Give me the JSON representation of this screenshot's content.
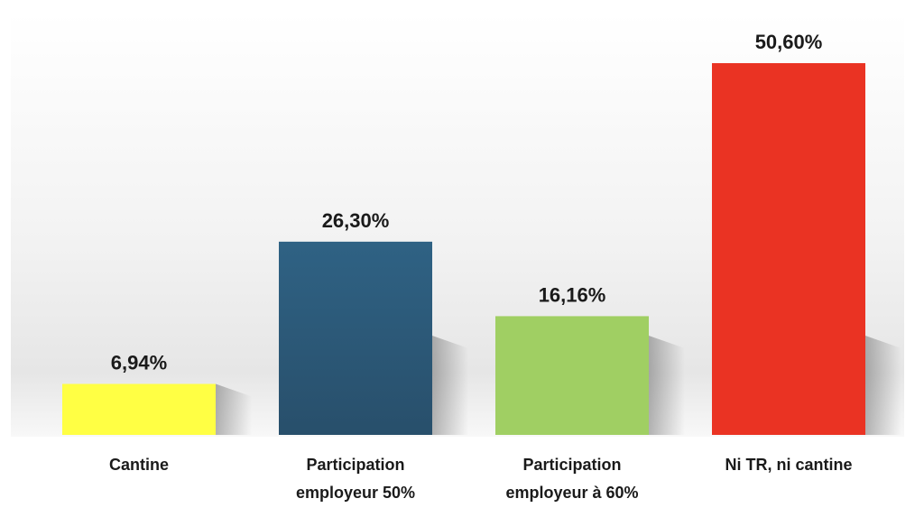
{
  "chart_data": {
    "type": "bar",
    "title": "",
    "xlabel": "",
    "ylabel": "",
    "ylim": [
      0,
      55
    ],
    "grid": false,
    "legend": "none",
    "categories": [
      [
        "Cantine"
      ],
      [
        "Participation",
        "employeur 50%"
      ],
      [
        "Participation",
        "employeur à 60%"
      ],
      [
        "Ni TR, ni cantine"
      ]
    ],
    "values": [
      6.94,
      26.3,
      16.16,
      50.6
    ],
    "data_labels": [
      "6,94%",
      "26,30%",
      "16,16%",
      "50,60%"
    ],
    "colors": [
      "#ffff44",
      "#2f5c7f",
      "#a0cf63",
      "#ea3323"
    ]
  }
}
